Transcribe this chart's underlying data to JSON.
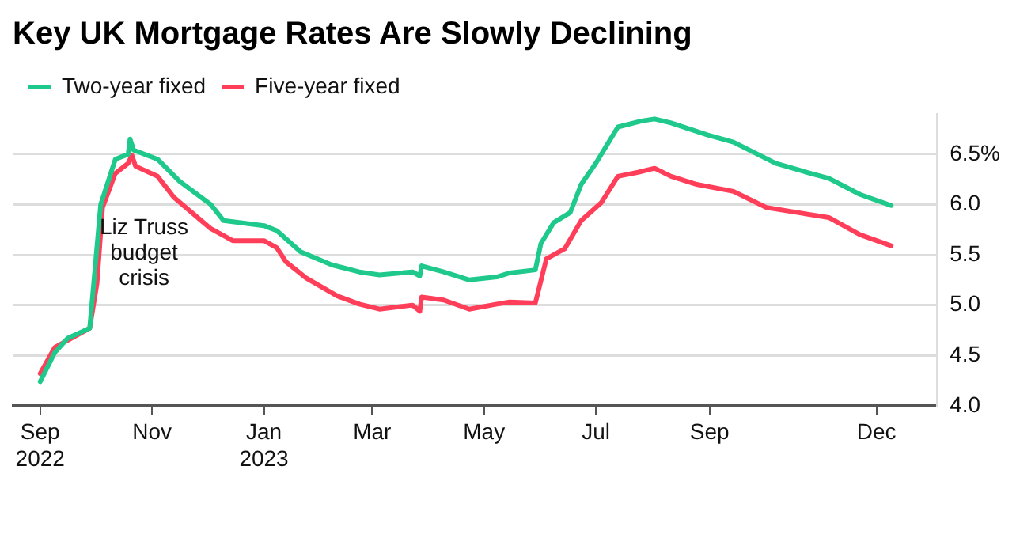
{
  "chart_data": {
    "type": "line",
    "title": "Key UK Mortgage Rates Are Slowly Declining",
    "xlim": [
      "2022-08-17",
      "2024-01-03"
    ],
    "xticks": [
      {
        "value": "2022-09-01",
        "label": "Sep 2022"
      },
      {
        "value": "2022-11-01",
        "label": "Nov"
      },
      {
        "value": "2023-01-01",
        "label": "Jan 2023"
      },
      {
        "value": "2023-03-01",
        "label": "Mar"
      },
      {
        "value": "2023-05-01",
        "label": "May"
      },
      {
        "value": "2023-07-01",
        "label": "Jul"
      },
      {
        "value": "2023-09-01",
        "label": "Sep"
      },
      {
        "value": "2023-12-01",
        "label": "Dec"
      }
    ],
    "ylim": [
      4,
      6.9
    ],
    "yticks": [
      {
        "value": 4,
        "label": "4.0"
      },
      {
        "value": 4.5,
        "label": "4.5"
      },
      {
        "value": 5,
        "label": "5.0"
      },
      {
        "value": 5.5,
        "label": "5.5"
      },
      {
        "value": 6,
        "label": "6.0"
      },
      {
        "value": 6.5,
        "label": "6.5%"
      }
    ],
    "grid": "y",
    "legend": "top left",
    "marker": "none",
    "line_style": "solid",
    "annotations": [
      "Liz Truss budget crisis"
    ],
    "series": [
      {
        "name": "Two-year fixed",
        "color": "#1ec98b",
        "x": [
          "2022-09-01",
          "2022-09-09",
          "2022-09-16",
          "2022-09-28",
          "2022-10-01",
          "2022-10-04",
          "2022-10-12",
          "2022-10-19",
          "2022-10-20",
          "2022-10-22",
          "2022-11-04",
          "2022-11-16",
          "2022-12-03",
          "2022-12-10",
          "2023-01-01",
          "2023-01-08",
          "2023-01-21",
          "2023-02-07",
          "2023-02-22",
          "2023-03-05",
          "2023-03-23",
          "2023-03-27",
          "2023-03-28",
          "2023-04-09",
          "2023-04-23",
          "2023-05-08",
          "2023-05-15",
          "2023-05-29",
          "2023-06-01",
          "2023-06-08",
          "2023-06-17",
          "2023-06-23",
          "2023-07-01",
          "2023-07-13",
          "2023-07-26",
          "2023-08-02",
          "2023-08-11",
          "2023-08-31",
          "2023-09-14",
          "2023-10-07",
          "2023-10-22",
          "2023-11-05",
          "2023-11-22",
          "2023-12-09"
        ],
        "values": [
          4.24,
          4.53,
          4.67,
          4.77,
          5.38,
          6.0,
          6.45,
          6.5,
          6.65,
          6.54,
          6.45,
          6.23,
          6.0,
          5.84,
          5.79,
          5.74,
          5.53,
          5.4,
          5.33,
          5.3,
          5.33,
          5.29,
          5.39,
          5.33,
          5.25,
          5.28,
          5.32,
          5.35,
          5.61,
          5.82,
          5.92,
          6.2,
          6.41,
          6.77,
          6.83,
          6.85,
          6.81,
          6.69,
          6.62,
          6.41,
          6.33,
          6.26,
          6.1,
          5.99
        ]
      },
      {
        "name": "Five-year fixed",
        "color": "#ff3f5a",
        "x": [
          "2022-09-01",
          "2022-09-09",
          "2022-09-16",
          "2022-09-28",
          "2022-10-02",
          "2022-10-05",
          "2022-10-12",
          "2022-10-19",
          "2022-10-21",
          "2022-10-23",
          "2022-11-04",
          "2022-11-13",
          "2022-12-03",
          "2022-12-15",
          "2023-01-01",
          "2023-01-08",
          "2023-01-13",
          "2023-01-24",
          "2023-02-10",
          "2023-02-22",
          "2023-03-05",
          "2023-03-23",
          "2023-03-27",
          "2023-03-28",
          "2023-04-09",
          "2023-04-23",
          "2023-05-08",
          "2023-05-15",
          "2023-05-29",
          "2023-06-04",
          "2023-06-14",
          "2023-06-23",
          "2023-07-04",
          "2023-07-13",
          "2023-07-24",
          "2023-08-02",
          "2023-08-11",
          "2023-08-25",
          "2023-09-14",
          "2023-10-02",
          "2023-10-19",
          "2023-11-05",
          "2023-11-22",
          "2023-12-09"
        ],
        "values": [
          4.32,
          4.58,
          4.65,
          4.77,
          5.22,
          5.97,
          6.31,
          6.41,
          6.49,
          6.38,
          6.28,
          6.07,
          5.76,
          5.64,
          5.64,
          5.57,
          5.43,
          5.27,
          5.09,
          5.01,
          4.96,
          5.0,
          4.94,
          5.08,
          5.05,
          4.96,
          5.01,
          5.03,
          5.02,
          5.46,
          5.56,
          5.84,
          6.02,
          6.28,
          6.32,
          6.36,
          6.28,
          6.2,
          6.13,
          5.97,
          5.92,
          5.87,
          5.7,
          5.59
        ]
      }
    ]
  }
}
